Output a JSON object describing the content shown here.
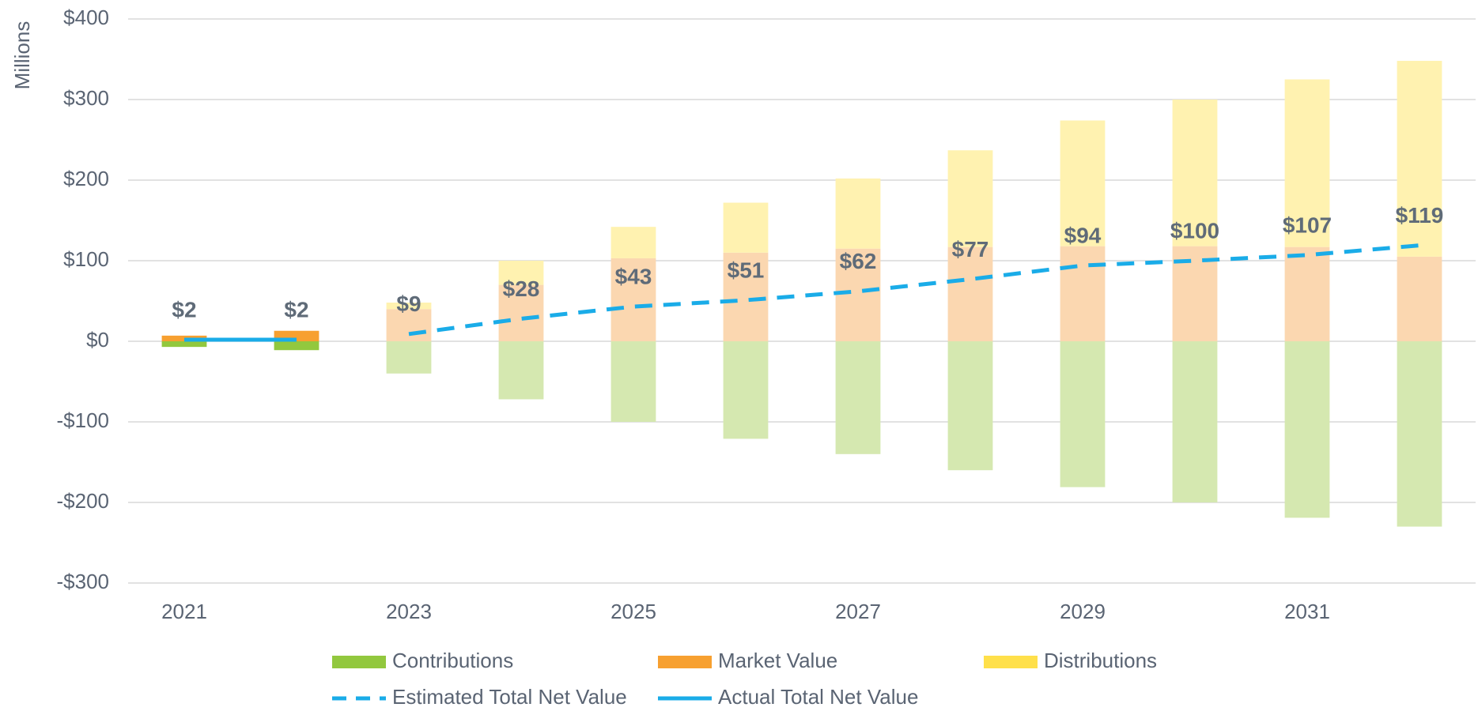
{
  "chart_data": {
    "type": "bar",
    "y_axis_label": "Millions",
    "categories": [
      "2021",
      null,
      "2023",
      null,
      "2025",
      null,
      "2027",
      null,
      "2029",
      null,
      "2031",
      null
    ],
    "series": [
      {
        "name": "Contributions",
        "type": "bar",
        "color": "#92c83e",
        "colors": [
          "#92c83e",
          "#92c83e",
          "#d5e8b0",
          "#d5e8b0",
          "#d5e8b0",
          "#d5e8b0",
          "#d5e8b0",
          "#d5e8b0",
          "#d5e8b0",
          "#d5e8b0",
          "#d5e8b0",
          "#d5e8b0"
        ],
        "values": [
          -7,
          -11,
          -40,
          -72,
          -100,
          -121,
          -140,
          -160,
          -181,
          -200,
          -219,
          -230
        ]
      },
      {
        "name": "Market Value",
        "type": "bar",
        "color": "#f7a030",
        "colors": [
          "#f7a030",
          "#f7a030",
          "#fbd7b0",
          "#fbd7b0",
          "#fbd7b0",
          "#fbd7b0",
          "#fbd7b0",
          "#fbd7b0",
          "#fbd7b0",
          "#fbd7b0",
          "#fbd7b0",
          "#fbd7b0"
        ],
        "values": [
          7,
          13,
          40,
          70,
          103,
          110,
          115,
          117,
          118,
          118,
          117,
          105
        ]
      },
      {
        "name": "Distributions",
        "type": "bar",
        "color": "#ffe04a",
        "colors": [
          "#ffe04a",
          "#ffe04a",
          "#fff2b0",
          "#fff2b0",
          "#fff2b0",
          "#fff2b0",
          "#fff2b0",
          "#fff2b0",
          "#fff2b0",
          "#fff2b0",
          "#fff2b0",
          "#fff2b0"
        ],
        "values": [
          0,
          0,
          8,
          30,
          39,
          62,
          87,
          120,
          156,
          182,
          208,
          243
        ]
      },
      {
        "name": "Estimated Total Net Value",
        "type": "line",
        "dash": true,
        "color": "#1aace8",
        "values": [
          null,
          null,
          9,
          28,
          43,
          51,
          62,
          77,
          94,
          100,
          107,
          119
        ],
        "value_labels": [
          null,
          null,
          "$9",
          "$28",
          "$43",
          "$51",
          "$62",
          "$77",
          "$94",
          "$100",
          "$107",
          "$119"
        ]
      },
      {
        "name": "Actual Total Net Value",
        "type": "line",
        "dash": false,
        "color": "#1aace8",
        "values": [
          2,
          2,
          null,
          null,
          null,
          null,
          null,
          null,
          null,
          null,
          null,
          null
        ],
        "value_labels": [
          "$2",
          "$2",
          null,
          null,
          null,
          null,
          null,
          null,
          null,
          null,
          null,
          null
        ]
      }
    ],
    "ylim": [
      -300,
      400
    ],
    "yticks": [
      {
        "value": -300,
        "label": "-$300"
      },
      {
        "value": -200,
        "label": "-$200"
      },
      {
        "value": -100,
        "label": "-$100"
      },
      {
        "value": 0,
        "label": "$0"
      },
      {
        "value": 100,
        "label": "$100"
      },
      {
        "value": 200,
        "label": "$200"
      },
      {
        "value": 300,
        "label": "$300"
      },
      {
        "value": 400,
        "label": "$400"
      }
    ],
    "grid": true,
    "legend": "bottom"
  }
}
